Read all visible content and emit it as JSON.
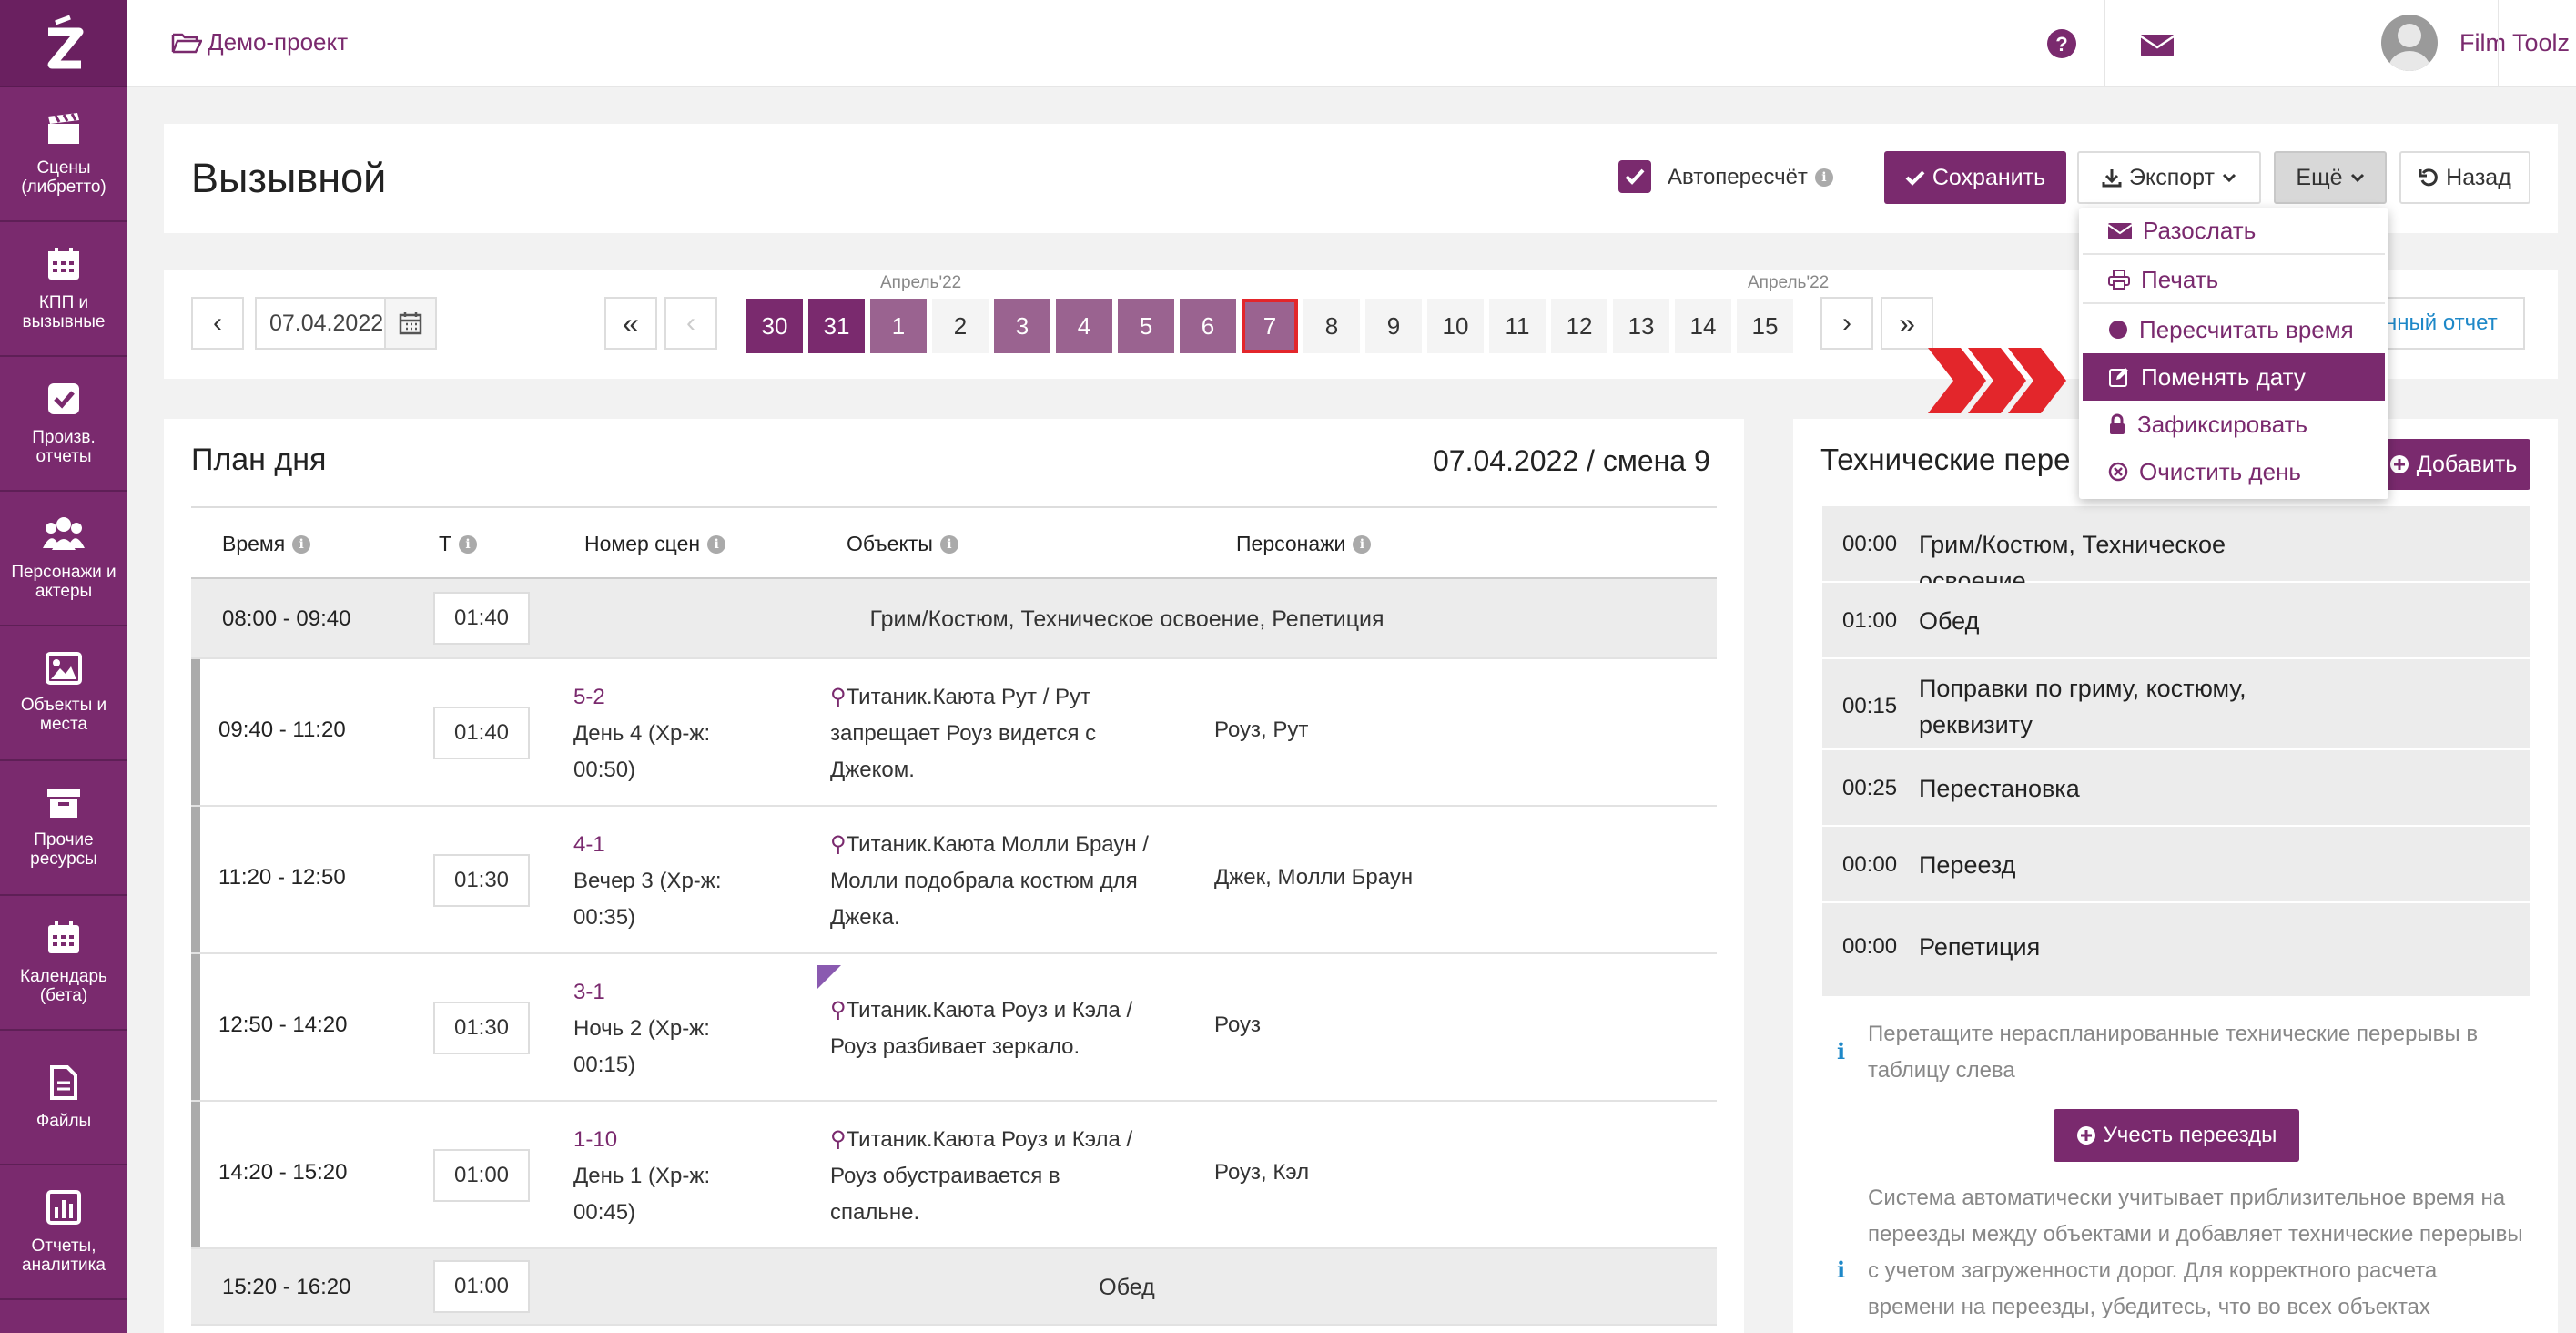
{
  "sidebar": {
    "items": [
      {
        "label": "Сцены (либретто)",
        "icon": "clapperboard-icon"
      },
      {
        "label": "КПП и вызывные",
        "icon": "calendar-icon"
      },
      {
        "label": "Произв. отчеты",
        "icon": "checkbox-icon"
      },
      {
        "label": "Персонажи и актеры",
        "icon": "people-icon"
      },
      {
        "label": "Объекты и места",
        "icon": "image-icon"
      },
      {
        "label": "Прочие ресурсы",
        "icon": "archive-icon"
      },
      {
        "label": "Календарь (бета)",
        "icon": "calendar-icon"
      },
      {
        "label": "Файлы",
        "icon": "file-icon"
      },
      {
        "label": "Отчеты, аналитика",
        "icon": "chart-icon"
      }
    ]
  },
  "topbar": {
    "project": "Демо-проект",
    "username": "Film Toolz",
    "lang": "RU"
  },
  "header": {
    "title": "Вызывной",
    "autorecalc_label": "Автопересчёт",
    "autorecalc_checked": true,
    "save_label": "Сохранить",
    "export_label": "Экспорт",
    "more_label": "Ещё",
    "back_label": "Назад"
  },
  "dropdown": {
    "items": [
      "Разослать",
      "Печать",
      "Пересчитать время",
      "Поменять дату",
      "Зафиксировать",
      "Очистить день"
    ],
    "active": "Поменять дату"
  },
  "datebar": {
    "date": "07.04.2022",
    "month_labels": [
      "Апрель'22",
      "Апрель'22"
    ],
    "days": [
      "30",
      "31",
      "1",
      "2",
      "3",
      "4",
      "5",
      "6",
      "7",
      "8",
      "9",
      "10",
      "11",
      "12",
      "13",
      "14",
      "15"
    ],
    "current_day": "7",
    "report_link": "нный отчет"
  },
  "plan": {
    "title": "План дня",
    "subtitle": "07.04.2022 / смена 9",
    "headers": {
      "time": "Время",
      "t": "Т",
      "scene": "Номер сцен",
      "objects": "Объекты",
      "characters": "Персонажи"
    },
    "rows": [
      {
        "time": "08:00 - 09:40",
        "dur": "01:40",
        "label": "Грим/Костюм, Техническое освоение, Репетиция"
      },
      {
        "time": "09:40 - 11:20",
        "dur": "01:40",
        "scene": "5-2",
        "scene_line2": "День 4 (Хр-ж:",
        "scene_line3": "00:50)",
        "obj1": "Титаник.Каюта Рут / Рут",
        "obj2": "запрещает Роуз видется с",
        "obj3": "Джеком.",
        "chars": "Роуз, Рут"
      },
      {
        "time": "11:20 - 12:50",
        "dur": "01:30",
        "scene": "4-1",
        "scene_line2": "Вечер 3 (Хр-ж:",
        "scene_line3": "00:35)",
        "obj1": "Титаник.Каюта Молли Браун /",
        "obj2": "Молли подобрала костюм для",
        "obj3": "Джека.",
        "chars": "Джек, Молли Браун"
      },
      {
        "time": "12:50 - 14:20",
        "dur": "01:30",
        "scene": "3-1",
        "scene_line2": "Ночь 2 (Хр-ж:",
        "scene_line3": "00:15)",
        "obj1": "Титаник.Каюта Роуз и Кэла /",
        "obj2": "Роуз разбивает зеркало.",
        "obj3": "",
        "chars": "Роуз"
      },
      {
        "time": "14:20 - 15:20",
        "dur": "01:00",
        "scene": "1-10",
        "scene_line2": "День 1 (Хр-ж:",
        "scene_line3": "00:45)",
        "obj1": "Титаник.Каюта Роуз и Кэла /",
        "obj2": "Роуз обустраивается в",
        "obj3": "спальне.",
        "chars": "Роуз, Кэл"
      },
      {
        "time": "15:20 - 16:20",
        "dur": "01:00",
        "label": "Обед"
      }
    ]
  },
  "breaks": {
    "title": "Технические пере",
    "add_label": "Добавить",
    "items": [
      {
        "time": "00:00",
        "label": "Грим/Костюм, Техническое освоение"
      },
      {
        "time": "01:00",
        "label": "Обед"
      },
      {
        "time": "00:15",
        "label": "Поправки по гриму, костюму, реквизиту"
      },
      {
        "time": "00:25",
        "label": "Перестановка"
      },
      {
        "time": "00:00",
        "label": "Переезд"
      },
      {
        "time": "00:00",
        "label": "Репетиция"
      }
    ],
    "hint1_l1": "Перетащите нераспланированные технические перерывы в",
    "hint1_l2": "таблицу слева",
    "travel_label": "Учесть переезды",
    "hint2_l1": "Система автоматически учитывает приблизительное время на",
    "hint2_l2": "переезды между объектами и добавляет технические перерывы",
    "hint2_l3": "с учетом загруженности дорог. Для корректного расчета",
    "hint2_l4": "времени на переезды, убедитесь, что во всех объектах"
  },
  "colors": {
    "brand": "#7a2a6e",
    "accent_red": "#e3262b",
    "link": "#1e88c8"
  }
}
